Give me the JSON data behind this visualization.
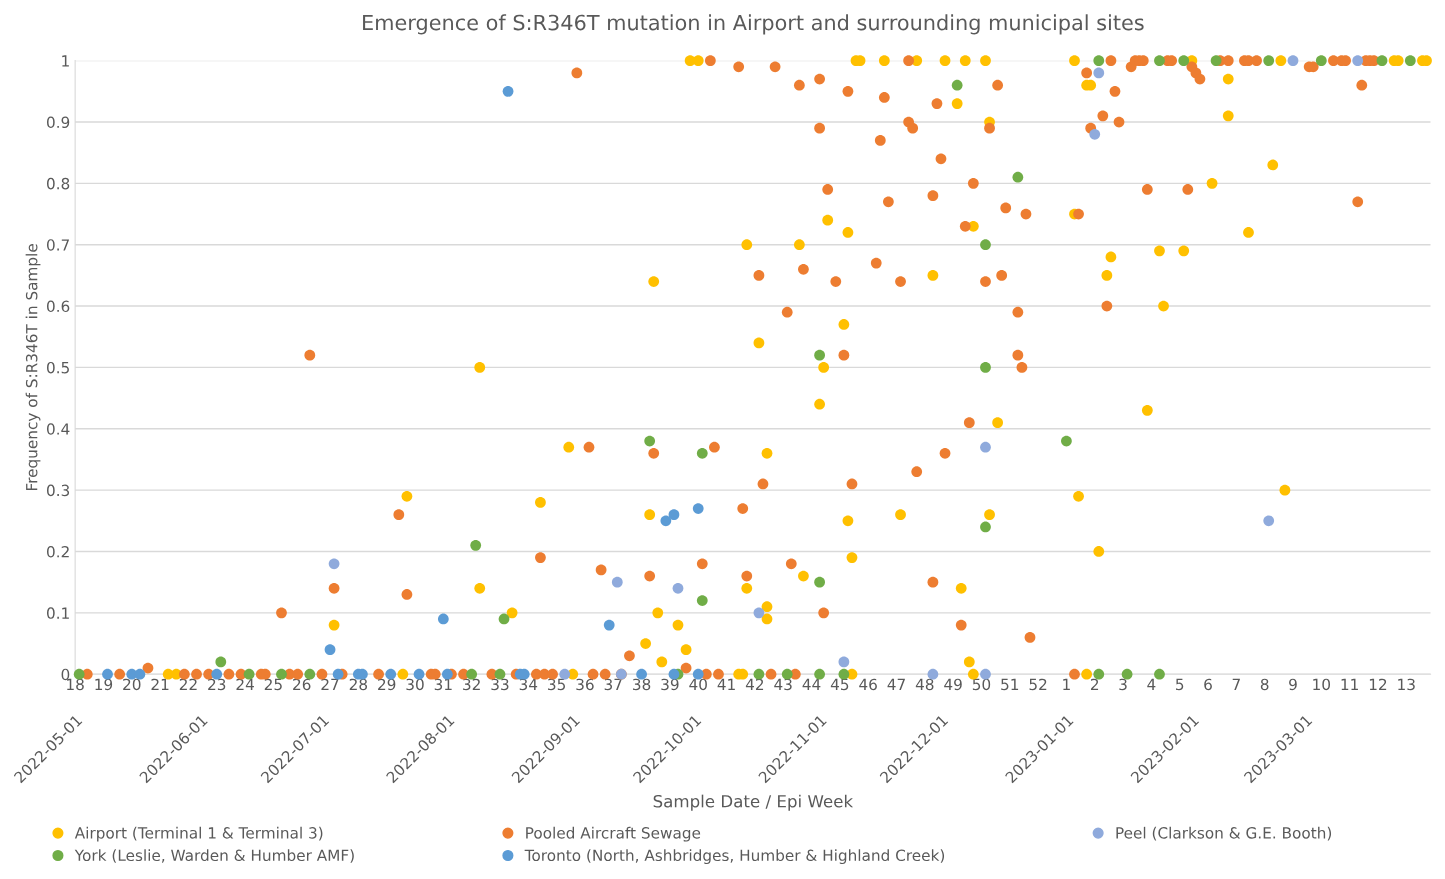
{
  "chart_data": {
    "type": "scatter",
    "title": "Emergence of S:R346T mutation in Airport and surrounding municipal sites",
    "xlabel": "Sample Date / Epi Week",
    "ylabel": "Frequency of S:R346T in Sample",
    "xlim": [
      "2022-05-01",
      "2023-04-01"
    ],
    "xticks": [
      {
        "value": "2022-05-01",
        "label": "2022-05-01"
      },
      {
        "value": "2022-06-01",
        "label": "2022-06-01"
      },
      {
        "value": "2022-07-01",
        "label": "2022-07-01"
      },
      {
        "value": "2022-08-01",
        "label": "2022-08-01"
      },
      {
        "value": "2022-09-01",
        "label": "2022-09-01"
      },
      {
        "value": "2022-10-01",
        "label": "2022-10-01"
      },
      {
        "value": "2022-11-01",
        "label": "2022-11-01"
      },
      {
        "value": "2022-12-01",
        "label": "2022-12-01"
      },
      {
        "value": "2023-01-01",
        "label": "2023-01-01"
      },
      {
        "value": "2023-02-01",
        "label": "2023-02-01"
      },
      {
        "value": "2023-03-01",
        "label": "2023-03-01"
      }
    ],
    "x2lim": [
      "2022-05-01",
      "2023-04-01"
    ],
    "x2ticks": [
      {
        "value": "2022-05-01",
        "label": "18"
      },
      {
        "value": "2022-05-08",
        "label": "19"
      },
      {
        "value": "2022-05-15",
        "label": "20"
      },
      {
        "value": "2022-05-22",
        "label": "21"
      },
      {
        "value": "2022-05-29",
        "label": "22"
      },
      {
        "value": "2022-06-05",
        "label": "23"
      },
      {
        "value": "2022-06-12",
        "label": "24"
      },
      {
        "value": "2022-06-19",
        "label": "25"
      },
      {
        "value": "2022-06-26",
        "label": "26"
      },
      {
        "value": "2022-07-03",
        "label": "27"
      },
      {
        "value": "2022-07-10",
        "label": "28"
      },
      {
        "value": "2022-07-17",
        "label": "29"
      },
      {
        "value": "2022-07-24",
        "label": "30"
      },
      {
        "value": "2022-07-31",
        "label": "31"
      },
      {
        "value": "2022-08-07",
        "label": "32"
      },
      {
        "value": "2022-08-14",
        "label": "33"
      },
      {
        "value": "2022-08-21",
        "label": "34"
      },
      {
        "value": "2022-08-28",
        "label": "35"
      },
      {
        "value": "2022-09-04",
        "label": "36"
      },
      {
        "value": "2022-09-11",
        "label": "37"
      },
      {
        "value": "2022-09-18",
        "label": "38"
      },
      {
        "value": "2022-09-25",
        "label": "39"
      },
      {
        "value": "2022-10-02",
        "label": "40"
      },
      {
        "value": "2022-10-09",
        "label": "41"
      },
      {
        "value": "2022-10-16",
        "label": "42"
      },
      {
        "value": "2022-10-23",
        "label": "43"
      },
      {
        "value": "2022-10-30",
        "label": "44"
      },
      {
        "value": "2022-11-06",
        "label": "45"
      },
      {
        "value": "2022-11-13",
        "label": "46"
      },
      {
        "value": "2022-11-20",
        "label": "47"
      },
      {
        "value": "2022-11-27",
        "label": "48"
      },
      {
        "value": "2022-12-04",
        "label": "49"
      },
      {
        "value": "2022-12-11",
        "label": "50"
      },
      {
        "value": "2022-12-18",
        "label": "51"
      },
      {
        "value": "2022-12-25",
        "label": "52"
      },
      {
        "value": "2023-01-01",
        "label": "1"
      },
      {
        "value": "2023-01-08",
        "label": "2"
      },
      {
        "value": "2023-01-15",
        "label": "3"
      },
      {
        "value": "2023-01-22",
        "label": "4"
      },
      {
        "value": "2023-01-29",
        "label": "5"
      },
      {
        "value": "2023-02-05",
        "label": "6"
      },
      {
        "value": "2023-02-12",
        "label": "7"
      },
      {
        "value": "2023-02-19",
        "label": "8"
      },
      {
        "value": "2023-02-26",
        "label": "9"
      },
      {
        "value": "2023-03-05",
        "label": "10"
      },
      {
        "value": "2023-03-12",
        "label": "11"
      },
      {
        "value": "2023-03-19",
        "label": "12"
      },
      {
        "value": "2023-03-26",
        "label": "13"
      }
    ],
    "ylim": [
      0,
      1
    ],
    "yticks": [
      0,
      0.1,
      0.2,
      0.3,
      0.4,
      0.5,
      0.6,
      0.7,
      0.8,
      0.9,
      1
    ],
    "grid": "y",
    "legend": "bottom",
    "marker": "circle",
    "series": [
      {
        "name": "Airport (Terminal 1 & Terminal 3)",
        "color": "#ffc000",
        "x": [
          "2022-05-24",
          "2022-05-26",
          "2022-07-04",
          "2022-07-22",
          "2022-07-21",
          "2022-08-09",
          "2022-08-09",
          "2022-08-17",
          "2022-08-24",
          "2022-08-31",
          "2022-09-01",
          "2022-09-19",
          "2022-09-20",
          "2022-09-21",
          "2022-09-22",
          "2022-09-23",
          "2022-09-27",
          "2022-09-29",
          "2022-09-30",
          "2022-10-02",
          "2022-10-12",
          "2022-10-13",
          "2022-10-14",
          "2022-10-14",
          "2022-10-17",
          "2022-10-19",
          "2022-10-19",
          "2022-10-19",
          "2022-10-27",
          "2022-10-28",
          "2022-11-01",
          "2022-11-02",
          "2022-11-03",
          "2022-11-07",
          "2022-11-08",
          "2022-11-08",
          "2022-11-09",
          "2022-11-09",
          "2022-11-10",
          "2022-11-11",
          "2022-11-17",
          "2022-11-21",
          "2022-11-25",
          "2022-11-29",
          "2022-12-02",
          "2022-12-05",
          "2022-12-06",
          "2022-12-07",
          "2022-12-08",
          "2022-12-09",
          "2022-12-09",
          "2022-12-12",
          "2022-12-13",
          "2022-12-13",
          "2022-12-15",
          "2023-01-03",
          "2023-01-03",
          "2023-01-04",
          "2023-01-06",
          "2023-01-06",
          "2023-01-07",
          "2023-01-09",
          "2023-01-11",
          "2023-01-12",
          "2023-01-21",
          "2023-01-24",
          "2023-01-25",
          "2023-01-30",
          "2023-02-01",
          "2023-02-06",
          "2023-02-10",
          "2023-02-10",
          "2023-02-15",
          "2023-02-21",
          "2023-02-23",
          "2023-02-24",
          "2023-03-23",
          "2023-03-24",
          "2023-03-30",
          "2023-03-31"
        ],
        "values": [
          0,
          0,
          0.08,
          0.29,
          0,
          0.5,
          0.14,
          0.1,
          0.28,
          0.37,
          0,
          0.05,
          0.26,
          0.64,
          0.1,
          0.02,
          0.08,
          0.04,
          1,
          1,
          0,
          0,
          0.7,
          0.14,
          0.54,
          0.11,
          0.36,
          0.09,
          0.7,
          0.16,
          0.44,
          0.5,
          0.74,
          0.57,
          0.72,
          0.25,
          0.19,
          0,
          1,
          1,
          1,
          0.26,
          1,
          0.65,
          1,
          0.93,
          0.14,
          1,
          0.02,
          0.73,
          0,
          1,
          0.26,
          0.9,
          0.41,
          1,
          0.75,
          0.29,
          0.96,
          0,
          0.96,
          0.2,
          0.65,
          0.68,
          0.43,
          0.69,
          0.6,
          0.69,
          1,
          0.8,
          0.97,
          0.91,
          0.72,
          0.83,
          1,
          0.3,
          1,
          1,
          1,
          1
        ]
      },
      {
        "name": "Pooled Aircraft Sewage",
        "color": "#ed7d31",
        "x": [
          "2022-05-04",
          "2022-05-12",
          "2022-05-19",
          "2022-05-28",
          "2022-05-31",
          "2022-06-03",
          "2022-06-08",
          "2022-06-11",
          "2022-06-16",
          "2022-06-17",
          "2022-06-21",
          "2022-06-23",
          "2022-06-25",
          "2022-06-28",
          "2022-07-01",
          "2022-07-04",
          "2022-07-06",
          "2022-07-15",
          "2022-07-20",
          "2022-07-22",
          "2022-07-28",
          "2022-07-29",
          "2022-08-02",
          "2022-08-05",
          "2022-08-12",
          "2022-08-18",
          "2022-08-23",
          "2022-08-24",
          "2022-08-25",
          "2022-08-27",
          "2022-09-02",
          "2022-09-05",
          "2022-09-06",
          "2022-09-08",
          "2022-09-09",
          "2022-09-13",
          "2022-09-15",
          "2022-09-20",
          "2022-09-21",
          "2022-09-29",
          "2022-10-03",
          "2022-10-04",
          "2022-10-05",
          "2022-10-06",
          "2022-10-07",
          "2022-10-12",
          "2022-10-13",
          "2022-10-14",
          "2022-10-17",
          "2022-10-18",
          "2022-10-20",
          "2022-10-21",
          "2022-10-24",
          "2022-10-25",
          "2022-10-26",
          "2022-10-27",
          "2022-10-28",
          "2022-11-01",
          "2022-11-01",
          "2022-11-02",
          "2022-11-03",
          "2022-11-05",
          "2022-11-07",
          "2022-11-08",
          "2022-11-09",
          "2022-11-15",
          "2022-11-16",
          "2022-11-17",
          "2022-11-18",
          "2022-11-21",
          "2022-11-23",
          "2022-11-23",
          "2022-11-24",
          "2022-11-25",
          "2022-11-29",
          "2022-11-29",
          "2022-11-30",
          "2022-12-01",
          "2022-12-02",
          "2022-12-06",
          "2022-12-07",
          "2022-12-08",
          "2022-12-09",
          "2022-12-12",
          "2022-12-13",
          "2022-12-15",
          "2022-12-16",
          "2022-12-17",
          "2022-12-20",
          "2022-12-20",
          "2022-12-21",
          "2022-12-22",
          "2022-12-23",
          "2023-01-03",
          "2023-01-04",
          "2023-01-06",
          "2023-01-07",
          "2023-01-10",
          "2023-01-11",
          "2023-01-12",
          "2023-01-13",
          "2023-01-14",
          "2023-01-17",
          "2023-01-18",
          "2023-01-19",
          "2023-01-20",
          "2023-01-21",
          "2023-01-26",
          "2023-01-27",
          "2023-01-31",
          "2023-02-01",
          "2023-02-02",
          "2023-02-03",
          "2023-02-08",
          "2023-02-10",
          "2023-02-14",
          "2023-02-15",
          "2023-02-17",
          "2023-03-02",
          "2023-03-03",
          "2023-03-08",
          "2023-03-10",
          "2023-03-11",
          "2023-03-14",
          "2023-03-15",
          "2023-03-16",
          "2023-03-17",
          "2023-03-18"
        ],
        "values": [
          0,
          0,
          0.01,
          0,
          0,
          0,
          0,
          0,
          0,
          0,
          0.1,
          0,
          0,
          0.52,
          0,
          0.14,
          0,
          0,
          0.26,
          0.13,
          0,
          0,
          0,
          0,
          0,
          0,
          0,
          0.19,
          0,
          0,
          0.98,
          0.37,
          0,
          0.17,
          0,
          0,
          0.03,
          0.16,
          0.36,
          0.01,
          0.18,
          0,
          1,
          0.37,
          0,
          0.99,
          0.27,
          0.16,
          0.65,
          0.31,
          0,
          0.99,
          0.59,
          0.18,
          0,
          0.96,
          0.66,
          0.97,
          0.89,
          0.1,
          0.79,
          0.64,
          0.52,
          0.95,
          0.31,
          0.67,
          0.87,
          0.94,
          0.77,
          0.64,
          0.9,
          1,
          0.89,
          0.33,
          0.15,
          0.78,
          0.93,
          0.84,
          0.36,
          0.08,
          0.73,
          0.41,
          0.8,
          0.64,
          0.89,
          0.96,
          0.65,
          0.76,
          0.59,
          0.52,
          0.5,
          0.75,
          0.06,
          0,
          0.75,
          0.98,
          0.89,
          0.91,
          0.6,
          1,
          0.95,
          0.9,
          0.99,
          1,
          1,
          1,
          0.79,
          1,
          1,
          0.79,
          0.99,
          0.98,
          0.97,
          1,
          1,
          1,
          1,
          1,
          0.99,
          0.99,
          1,
          1,
          1,
          0.77,
          0.96,
          1,
          1,
          1
        ]
      },
      {
        "name": "Peel (Clarkson & G.E. Booth)",
        "color": "#8faadc",
        "x": [
          "2022-07-04",
          "2022-08-30",
          "2022-09-12",
          "2022-09-13",
          "2022-09-27",
          "2022-10-17",
          "2022-11-07",
          "2022-11-29",
          "2022-12-12",
          "2022-12-12",
          "2023-01-08",
          "2023-01-09",
          "2023-02-20",
          "2023-02-26",
          "2023-03-14"
        ],
        "values": [
          0.18,
          0,
          0.15,
          0,
          0.14,
          0.1,
          0.02,
          0,
          0.37,
          0,
          0.88,
          0.98,
          0.25,
          1,
          1
        ]
      },
      {
        "name": "York (Leslie, Warden & Humber AMF)",
        "color": "#70ad47",
        "x": [
          "2022-05-02",
          "2022-06-06",
          "2022-06-13",
          "2022-06-21",
          "2022-06-28",
          "2022-08-07",
          "2022-08-08",
          "2022-08-14",
          "2022-08-15",
          "2022-09-20",
          "2022-09-27",
          "2022-10-03",
          "2022-10-03",
          "2022-10-17",
          "2022-10-24",
          "2022-11-01",
          "2022-11-01",
          "2022-11-01",
          "2022-11-07",
          "2022-12-05",
          "2022-12-12",
          "2022-12-12",
          "2022-12-12",
          "2022-12-20",
          "2023-01-01",
          "2023-01-09",
          "2023-01-09",
          "2023-01-16",
          "2023-01-24",
          "2023-01-24",
          "2023-01-30",
          "2023-02-07",
          "2023-02-20",
          "2023-03-05",
          "2023-03-20",
          "2023-03-27"
        ],
        "values": [
          0,
          0.02,
          0,
          0,
          0,
          0,
          0.21,
          0,
          0.09,
          0.38,
          0,
          0.36,
          0.12,
          0,
          0,
          0.15,
          0,
          0.52,
          0,
          0.96,
          0.7,
          0.5,
          0.24,
          0.81,
          0.38,
          1,
          0,
          0,
          0,
          1,
          1,
          1,
          1,
          1,
          1,
          1
        ]
      },
      {
        "name": "Toronto (North, Ashbridges, Humber & Highland Creek)",
        "color": "#5b9bd5",
        "x": [
          "2022-05-09",
          "2022-05-15",
          "2022-05-17",
          "2022-06-05",
          "2022-07-03",
          "2022-07-05",
          "2022-07-10",
          "2022-07-11",
          "2022-07-18",
          "2022-07-25",
          "2022-07-31",
          "2022-08-01",
          "2022-08-16",
          "2022-08-19",
          "2022-08-20",
          "2022-09-10",
          "2022-09-18",
          "2022-09-24",
          "2022-09-26",
          "2022-09-26",
          "2022-10-02",
          "2022-10-02"
        ],
        "values": [
          0,
          0,
          0,
          0,
          0.04,
          0,
          0,
          0,
          0,
          0,
          0.09,
          0,
          0.95,
          0,
          0,
          0.08,
          0,
          0.25,
          0.26,
          0,
          0.27,
          0
        ]
      }
    ]
  }
}
